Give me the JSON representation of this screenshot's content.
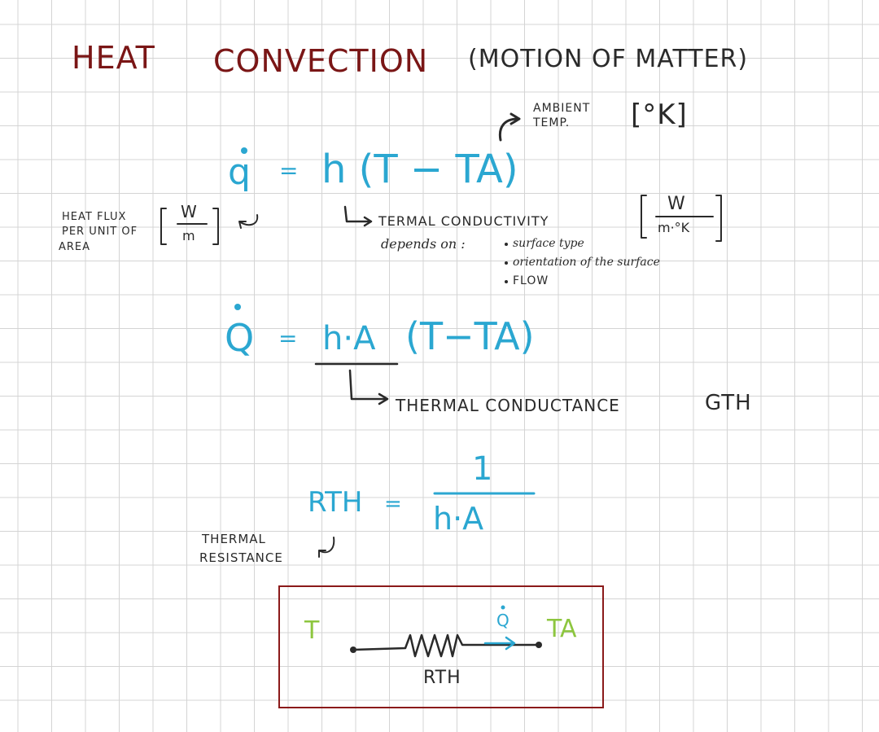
{
  "title": {
    "heat": "HEAT",
    "convection": "CONVECTION",
    "note": "(MOTION OF MATTER)"
  },
  "ambient": {
    "label_line1": "AMBIENT",
    "label_line2": "TEMP.",
    "unit": "[°K]"
  },
  "eq1": {
    "lhs": "q",
    "equals": "=",
    "rhs": "h (T − TA)"
  },
  "flux": {
    "line1": "HEAT FLUX",
    "line2": "PER UNIT OF",
    "line3": "AREA",
    "unit_num": "W",
    "unit_den": "m"
  },
  "conductivity": {
    "label": "TERMAL CONDUCTIVITY",
    "unit_num": "W",
    "unit_den": "m·°K",
    "depends": "depends on :",
    "items": [
      "surface type",
      "orientation of the surface",
      "FLOW"
    ]
  },
  "eq2": {
    "lhs": "Q",
    "equals": "=",
    "ha": "h·A",
    "paren": "(T−TA)"
  },
  "conductance": {
    "label": "THERMAL CONDUCTANCE",
    "symbol": "GTH"
  },
  "eq3": {
    "lhs": "RTH",
    "equals": "=",
    "num": "1",
    "den": "h·A"
  },
  "resistance": {
    "line1": "THERMAL",
    "line2": "RESISTANCE"
  },
  "circuit": {
    "left": "T",
    "right": "TA",
    "flow": "Q",
    "resistor": "RTH"
  },
  "colors": {
    "title": "#7a1616",
    "formula": "#2ba7d1",
    "ink": "#2a2a2a",
    "box": "#8b1a1a",
    "temps": "#8dc63f"
  }
}
